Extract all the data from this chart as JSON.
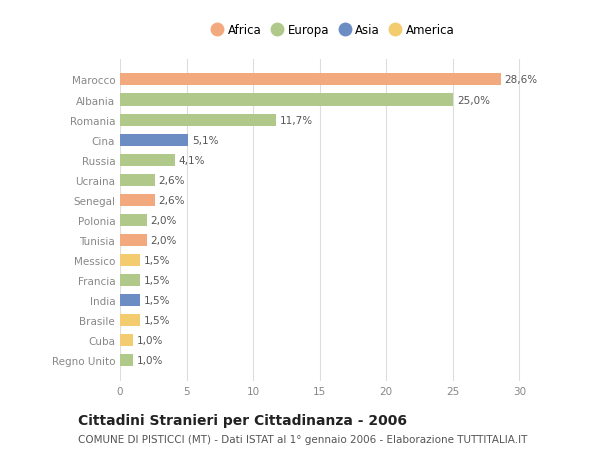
{
  "categories": [
    "Marocco",
    "Albania",
    "Romania",
    "Cina",
    "Russia",
    "Ucraina",
    "Senegal",
    "Polonia",
    "Tunisia",
    "Messico",
    "Francia",
    "India",
    "Brasile",
    "Cuba",
    "Regno Unito"
  ],
  "values": [
    28.6,
    25.0,
    11.7,
    5.1,
    4.1,
    2.6,
    2.6,
    2.0,
    2.0,
    1.5,
    1.5,
    1.5,
    1.5,
    1.0,
    1.0
  ],
  "labels": [
    "28,6%",
    "25,0%",
    "11,7%",
    "5,1%",
    "4,1%",
    "2,6%",
    "2,6%",
    "2,0%",
    "2,0%",
    "1,5%",
    "1,5%",
    "1,5%",
    "1,5%",
    "1,0%",
    "1,0%"
  ],
  "continents": [
    "Africa",
    "Europa",
    "Europa",
    "Asia",
    "Europa",
    "Europa",
    "Africa",
    "Europa",
    "Africa",
    "America",
    "Europa",
    "Asia",
    "America",
    "America",
    "Europa"
  ],
  "continent_colors": {
    "Africa": "#F2A97E",
    "Europa": "#B0C88A",
    "Asia": "#6B8DC4",
    "America": "#F2CC6E"
  },
  "legend_order": [
    "Africa",
    "Europa",
    "Asia",
    "America"
  ],
  "title": "Cittadini Stranieri per Cittadinanza - 2006",
  "subtitle": "COMUNE DI PISTICCI (MT) - Dati ISTAT al 1° gennaio 2006 - Elaborazione TUTTITALIA.IT",
  "xlim": [
    0,
    32
  ],
  "xticks": [
    0,
    5,
    10,
    15,
    20,
    25,
    30
  ],
  "bg_color": "#ffffff",
  "bar_height": 0.6,
  "grid_color": "#dddddd",
  "title_fontsize": 10,
  "subtitle_fontsize": 7.5,
  "label_fontsize": 7.5,
  "tick_fontsize": 7.5,
  "legend_fontsize": 8.5
}
